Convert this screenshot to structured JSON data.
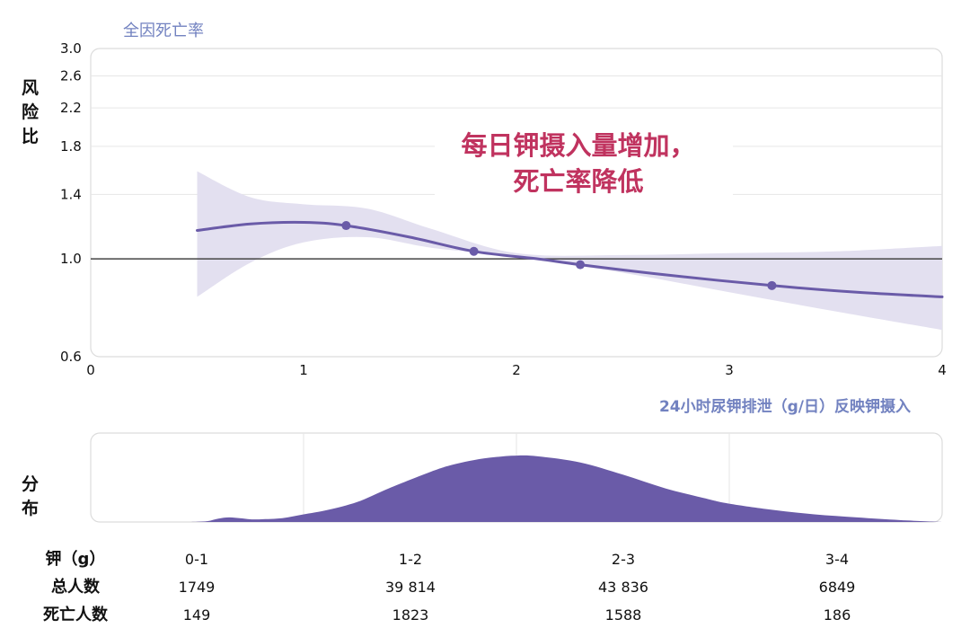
{
  "chart_data": [
    {
      "type": "line",
      "title": "全因死亡率",
      "ylabel": "风险比",
      "xlabel": "24小时尿钾排泄（g/日）反映钾摄入",
      "annotation": "每日钾摄入量增加，死亡率降低",
      "x_ticks": [
        "0",
        "1",
        "2",
        "3",
        "4"
      ],
      "y_ticks": [
        "0.6",
        "1.0",
        "1.4",
        "1.8",
        "2.2",
        "2.6",
        "3.0"
      ],
      "xlim": [
        0,
        4
      ],
      "ylim": [
        0.6,
        3.0
      ],
      "y_scale": "log",
      "reference_line": 1.0,
      "grid": true,
      "series": [
        {
          "points": [
            [
              1.2,
              1.19
            ],
            [
              1.8,
              1.04
            ],
            [
              2.3,
              0.97
            ],
            [
              3.2,
              0.87
            ]
          ]
        }
      ],
      "colors": {
        "line": "#6a5ba8",
        "band": "#e3e0f0",
        "ref": "#444444",
        "grid": "#e6e6e6"
      }
    },
    {
      "type": "area",
      "ylabel": "分布",
      "colors": {
        "fill": "#6a5ba8"
      }
    },
    {
      "type": "table",
      "row_headers": [
        "钾（g）",
        "总人数",
        "死亡人数"
      ],
      "columns": [
        {
          "range": "0-1",
          "total": "1749",
          "deaths": "149"
        },
        {
          "range": "1-2",
          "total": "39 814",
          "deaths": "1823"
        },
        {
          "range": "2-3",
          "total": "43 836",
          "deaths": "1588"
        },
        {
          "range": "3-4",
          "total": "6849",
          "deaths": "186"
        }
      ]
    }
  ]
}
